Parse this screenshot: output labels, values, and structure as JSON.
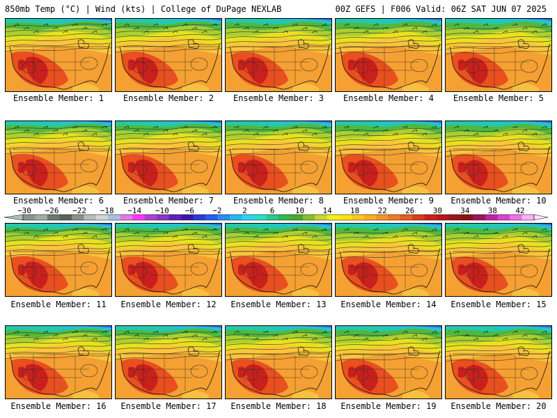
{
  "header": {
    "left": "850mb Temp (°C) | Wind (kts) | College of DuPage NEXLAB",
    "right": "00Z GEFS | F006 Valid: 06Z SAT JUN 07 2025"
  },
  "member_label_prefix": "Ensemble Member: ",
  "members": [
    "1",
    "2",
    "3",
    "4",
    "5",
    "6",
    "7",
    "8",
    "9",
    "10",
    "11",
    "12",
    "13",
    "14",
    "15",
    "16",
    "17",
    "18",
    "19",
    "20"
  ],
  "colorbar": {
    "tick_labels": [
      "−30",
      "−26",
      "−22",
      "−18",
      "−14",
      "−10",
      "−6",
      "−2",
      "2",
      "6",
      "10",
      "14",
      "18",
      "22",
      "26",
      "30",
      "34",
      "38",
      "42"
    ],
    "colors": [
      "#8a948a",
      "#a3aba3",
      "#6e7670",
      "#5a625c",
      "#8a9090",
      "#b4bcbc",
      "#cfd6d6",
      "#a7c0e0",
      "#e07ae0",
      "#ff33ff",
      "#b040d0",
      "#8a34c8",
      "#6020b8",
      "#3e14a8",
      "#2c3cd8",
      "#2462ee",
      "#2a8cf2",
      "#2ab4f2",
      "#28d4f2",
      "#24e0c8",
      "#2ac890",
      "#30b848",
      "#4aa82c",
      "#88c02c",
      "#c8d830",
      "#f4f01c",
      "#fce018",
      "#fdc820",
      "#fcac24",
      "#f79228",
      "#f17824",
      "#e85c20",
      "#dc3a1c",
      "#d01c1c",
      "#b81818",
      "#a01414",
      "#8c1010",
      "#9c145c",
      "#c020a8",
      "#dc40cc",
      "#f070e8",
      "#fcb0f8"
    ]
  },
  "map_colors": {
    "hot": "#c8201c",
    "warm": "#e85020",
    "orange": "#f4a032",
    "amber": "#fcc43a",
    "yellow": "#e8e020",
    "yellowgreen": "#a8d030",
    "green": "#50b840",
    "teal": "#24c8b0",
    "cyan": "#30b8e8",
    "blue": "#3070e0",
    "ocean_gulf": "#f8c040"
  }
}
